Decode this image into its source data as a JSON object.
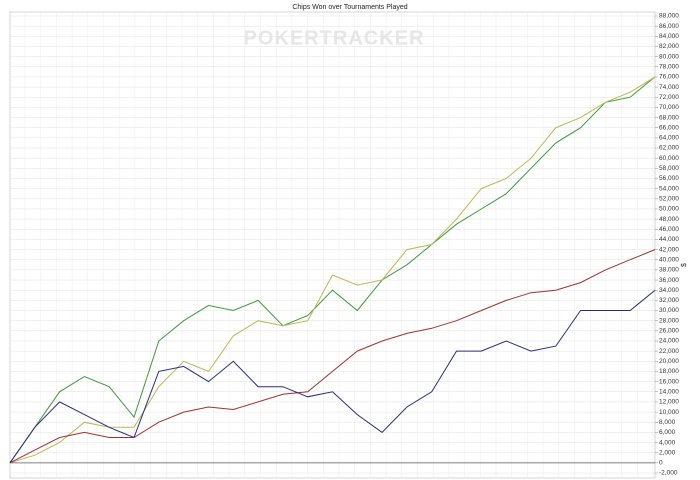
{
  "chart_data": {
    "type": "line",
    "title": "Chips Won over Tournaments Played",
    "watermark": "POKERTRACKER",
    "ylabel": "$",
    "ylim": [
      -2000,
      88000
    ],
    "yticks": [
      {
        "value": -2000,
        "label": "-2,000"
      },
      0,
      {
        "value": 2000,
        "label": "2,000"
      },
      {
        "value": 4000,
        "label": "4,000"
      },
      {
        "value": 6000,
        "label": "6,000"
      },
      {
        "value": 8000,
        "label": "8,000"
      },
      {
        "value": 10000,
        "label": "10,000"
      },
      {
        "value": 12000,
        "label": "12,000"
      },
      {
        "value": 14000,
        "label": "14,000"
      },
      {
        "value": 16000,
        "label": "16,000"
      },
      {
        "value": 18000,
        "label": "18,000"
      },
      {
        "value": 20000,
        "label": "20,000"
      },
      {
        "value": 22000,
        "label": "22,000"
      },
      {
        "value": 24000,
        "label": "24,000"
      },
      {
        "value": 26000,
        "label": "26,000"
      },
      {
        "value": 28000,
        "label": "28,000"
      },
      {
        "value": 30000,
        "label": "30,000"
      },
      {
        "value": 32000,
        "label": "32,000"
      },
      {
        "value": 34000,
        "label": "34,000"
      },
      {
        "value": 36000,
        "label": "36,000"
      },
      {
        "value": 38000,
        "label": "38,000"
      },
      {
        "value": 40000,
        "label": "40,000"
      },
      {
        "value": 42000,
        "label": "42,000"
      },
      {
        "value": 44000,
        "label": "44,000"
      },
      {
        "value": 46000,
        "label": "46,000"
      },
      {
        "value": 48000,
        "label": "48,000"
      },
      {
        "value": 50000,
        "label": "50,000"
      },
      {
        "value": 52000,
        "label": "52,000"
      },
      {
        "value": 54000,
        "label": "54,000"
      },
      {
        "value": 56000,
        "label": "56,000"
      },
      {
        "value": 58000,
        "label": "58,000"
      },
      {
        "value": 60000,
        "label": "60,000"
      },
      {
        "value": 62000,
        "label": "62,000"
      },
      {
        "value": 64000,
        "label": "64,000"
      },
      {
        "value": 66000,
        "label": "66,000"
      },
      {
        "value": 68000,
        "label": "68,000"
      },
      {
        "value": 70000,
        "label": "70,000"
      },
      {
        "value": 72000,
        "label": "72,000"
      },
      {
        "value": 74000,
        "label": "74,000"
      },
      {
        "value": 76000,
        "label": "76,000"
      },
      {
        "value": 78000,
        "label": "78,000"
      },
      {
        "value": 80000,
        "label": "80,000"
      },
      {
        "value": 82000,
        "label": "82,000"
      },
      {
        "value": 84000,
        "label": "84,000"
      },
      {
        "value": 86000,
        "label": "86,000"
      },
      {
        "value": 88000,
        "label": "88,000"
      }
    ],
    "grid": true,
    "series": [
      {
        "color": "#3a9a3a",
        "values": [
          0,
          7000,
          14000,
          17000,
          15000,
          9000,
          24000,
          28000,
          31000,
          30000,
          32000,
          27000,
          29000,
          34000,
          30000,
          36000,
          39000,
          43000,
          47000,
          50000,
          53000,
          58000,
          63000,
          66000,
          71000,
          72000,
          76000
        ]
      },
      {
        "color": "#b8b850",
        "values": [
          0,
          1500,
          4000,
          8000,
          7000,
          7000,
          15000,
          20000,
          18000,
          25000,
          28000,
          27000,
          28000,
          37000,
          35000,
          36000,
          42000,
          43000,
          48000,
          54000,
          56000,
          60000,
          66000,
          68000,
          71000,
          73000,
          76000
        ]
      },
      {
        "color": "#a03030",
        "values": [
          0,
          2500,
          5000,
          6000,
          5000,
          5000,
          8000,
          10000,
          11000,
          10500,
          12000,
          13500,
          14000,
          18000,
          22000,
          24000,
          25500,
          26500,
          28000,
          30000,
          32000,
          33500,
          34000,
          35500,
          38000,
          40000,
          42000
        ]
      },
      {
        "color": "#2a2a80",
        "values": [
          0,
          7000,
          12000,
          9500,
          7000,
          5000,
          18000,
          19000,
          16000,
          20000,
          15000,
          15000,
          13000,
          14000,
          9500,
          6000,
          11000,
          14000,
          22000,
          22000,
          24000,
          22000,
          23000,
          30000,
          30000,
          30000,
          34000
        ]
      }
    ]
  }
}
